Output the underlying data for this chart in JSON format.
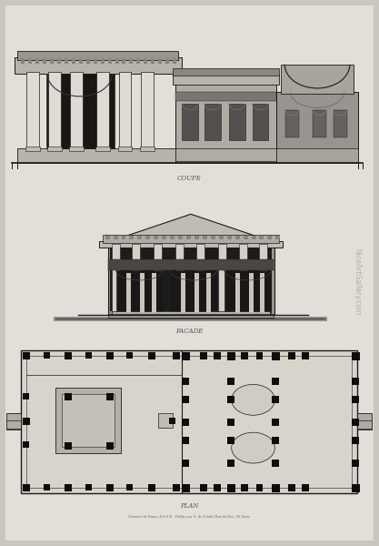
{
  "bg_color": "#cac6be",
  "paper_color": "#e2dfd8",
  "line_color": "#1a1a1a",
  "dark_color": "#0d0d0d",
  "mid_color": "#444444",
  "fill_light": "#c8c4bc",
  "fill_mid": "#7a7a7a",
  "fill_dark": "#2a2826",
  "label_coupe": "COUPE",
  "label_facade": "FACADE",
  "label_plan": "PLAN",
  "watermark": "NiceArtGallery.com",
  "caption": "Gravure de Bance A.D.S.D.  Publie par G. de Pelafol Rue du Bac, 93 Paris"
}
